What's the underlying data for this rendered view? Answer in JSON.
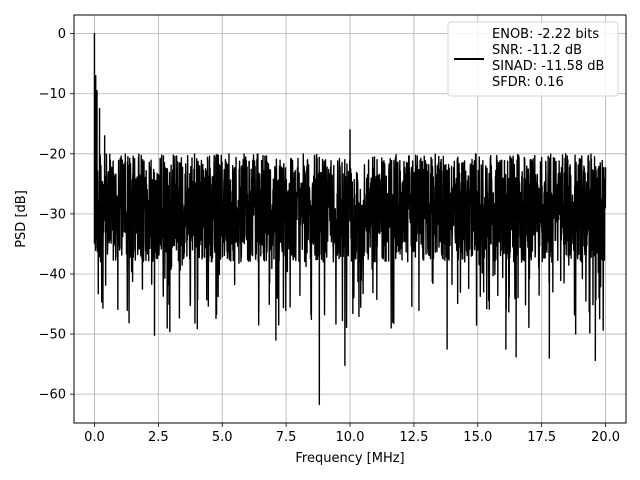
{
  "chart_data": {
    "type": "line",
    "xlabel": "Frequency [MHz]",
    "ylabel": "PSD [dB]",
    "xlim": [
      -0.8,
      20.8
    ],
    "ylim": [
      -64.8,
      3.1
    ],
    "x_ticks": [
      0.0,
      2.5,
      5.0,
      7.5,
      10.0,
      12.5,
      15.0,
      17.5,
      20.0
    ],
    "x_tick_labels": [
      "0.0",
      "2.5",
      "5.0",
      "7.5",
      "10.0",
      "12.5",
      "15.0",
      "17.5",
      "20.0"
    ],
    "y_ticks": [
      0,
      -10,
      -20,
      -30,
      -40,
      -50,
      -60
    ],
    "y_tick_labels": [
      "0",
      "−10",
      "−20",
      "−30",
      "−40",
      "−50",
      "−60"
    ],
    "grid": true,
    "legend_position": "top-right",
    "series": [
      {
        "color": "#000000",
        "x_range": [
          0.0,
          20.0
        ],
        "notable_points": [
          {
            "x": 0.0,
            "y": 0.0
          },
          {
            "x": 0.05,
            "y": -7.0
          },
          {
            "x": 0.1,
            "y": -9.5
          },
          {
            "x": 0.2,
            "y": -12.5
          },
          {
            "x": 0.4,
            "y": -17.0
          },
          {
            "x": 10.0,
            "y": -16.0
          },
          {
            "x": 8.8,
            "y": -61.7
          },
          {
            "x": 9.8,
            "y": -55.2
          },
          {
            "x": 0.15,
            "y": -43.3
          },
          {
            "x": 2.35,
            "y": -50.2
          },
          {
            "x": 2.95,
            "y": -49.6
          },
          {
            "x": 7.1,
            "y": -51.0
          },
          {
            "x": 13.8,
            "y": -52.5
          },
          {
            "x": 16.1,
            "y": -52.5
          },
          {
            "x": 16.5,
            "y": -53.8
          },
          {
            "x": 17.8,
            "y": -54.0
          },
          {
            "x": 19.6,
            "y": -54.4
          }
        ],
        "floor_band_db": [
          -38,
          -20
        ]
      }
    ],
    "legend_lines": [
      "ENOB: -2.22 bits",
      "SNR: -11.2 dB",
      "SINAD: -11.58 dB",
      "SFDR: 0.16"
    ]
  }
}
